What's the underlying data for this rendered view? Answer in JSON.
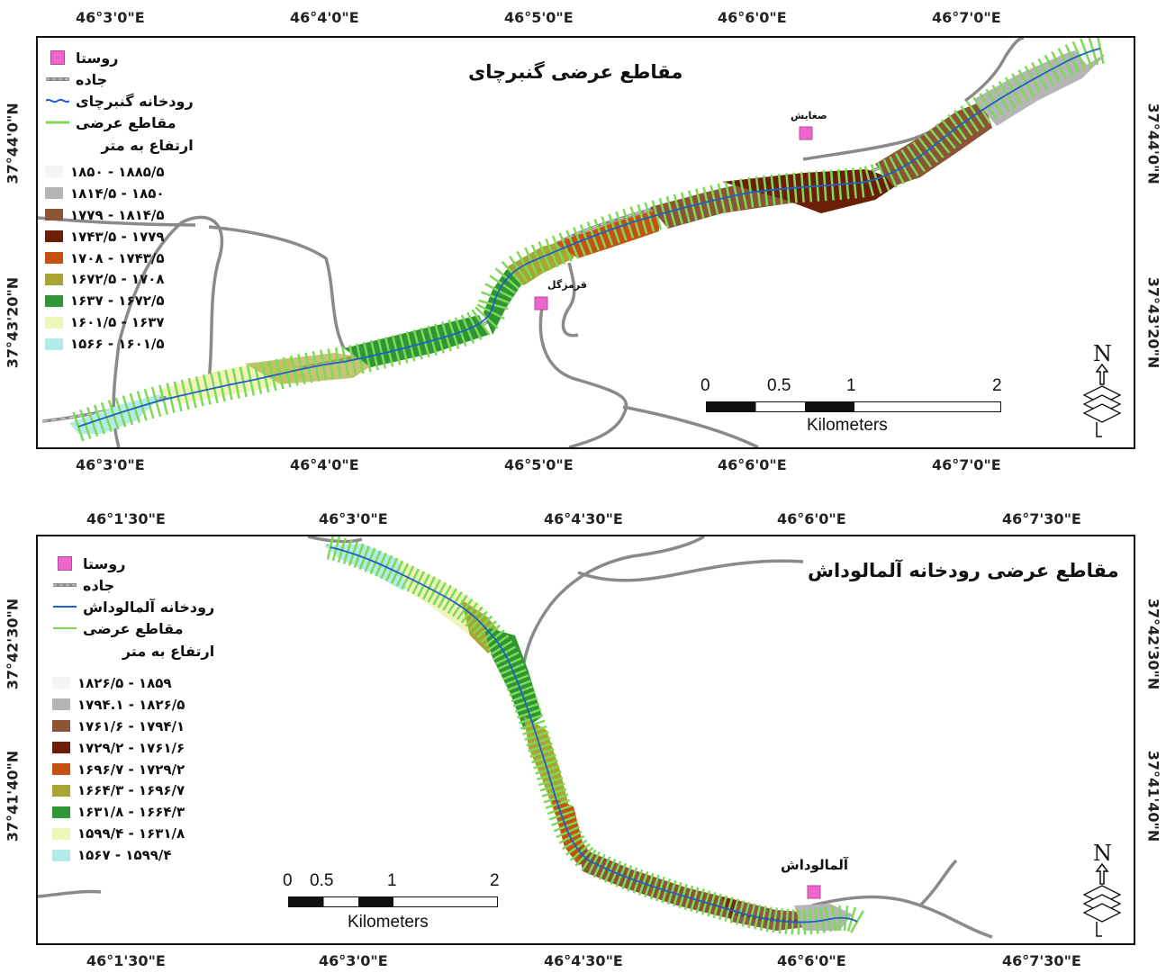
{
  "map1": {
    "title": "مقاطع عرضی گنبرچای",
    "lon_ticks": [
      "46°3'0\"E",
      "46°4'0\"E",
      "46°5'0\"E",
      "46°6'0\"E",
      "46°7'0\"E"
    ],
    "lat_ticks": [
      "37°44'0\"N",
      "37°43'20\"N"
    ],
    "legend": {
      "village": "روستا",
      "road": "جاده",
      "river": "رودخانه گنبرچای",
      "cross_sections": "مقاطع عرضی",
      "elevation_header": "ارتفاع به متر"
    },
    "classes": [
      {
        "label": "۱۸۵۰ - ۱۸۸۵/۵",
        "color": "#f5f5f5"
      },
      {
        "label": "۱۸۱۴/۵ - ۱۸۵۰",
        "color": "#b5b5b5"
      },
      {
        "label": "۱۷۷۹ - ۱۸۱۴/۵",
        "color": "#8b5535"
      },
      {
        "label": "۱۷۴۳/۵ - ۱۷۷۹",
        "color": "#6b1e08"
      },
      {
        "label": "۱۷۰۸ - ۱۷۴۳/۵",
        "color": "#c55212"
      },
      {
        "label": "۱۶۷۲/۵ - ۱۷۰۸",
        "color": "#a9a532"
      },
      {
        "label": "۱۶۳۷ - ۱۶۷۲/۵",
        "color": "#2e9632"
      },
      {
        "label": "۱۶۰۱/۵ - ۱۶۳۷",
        "color": "#eef5b8"
      },
      {
        "label": "۱۵۶۶ - ۱۶۰۱/۵",
        "color": "#b3ebe8"
      }
    ],
    "places": [
      "صغایش",
      "قرمزگل"
    ],
    "scale": {
      "ticks": [
        "0",
        "0.5",
        "1",
        "2"
      ],
      "unit": "Kilometers"
    }
  },
  "map2": {
    "title": "مقاطع عرضی رودخانه آلمالوداش",
    "lon_ticks": [
      "46°1'30\"E",
      "46°3'0\"E",
      "46°4'30\"E",
      "46°6'0\"E",
      "46°7'30\"E"
    ],
    "lat_ticks": [
      "37°42'30\"N",
      "37°41'40\"N"
    ],
    "legend": {
      "village": "روستا",
      "road": "جاده",
      "river": "رودخانه آلمالوداش",
      "cross_sections": "مقاطع عرضی",
      "elevation_header": "ارتفاع به متر"
    },
    "classes": [
      {
        "label": "۱۸۲۶/۵ - ۱۸۵۹",
        "color": "#f5f5f5"
      },
      {
        "label": "۱۷۹۴.۱ - ۱۸۲۶/۵",
        "color": "#b5b5b5"
      },
      {
        "label": "۱۷۶۱/۶ - ۱۷۹۴/۱",
        "color": "#8b5535"
      },
      {
        "label": "۱۷۲۹/۲ - ۱۷۶۱/۶",
        "color": "#6b1e08"
      },
      {
        "label": "۱۶۹۶/۷ - ۱۷۲۹/۲",
        "color": "#c55212"
      },
      {
        "label": "۱۶۶۴/۳ - ۱۶۹۶/۷",
        "color": "#a9a532"
      },
      {
        "label": "۱۶۳۱/۸ - ۱۶۶۴/۳",
        "color": "#2e9632"
      },
      {
        "label": "۱۵۹۹/۴ - ۱۶۳۱/۸",
        "color": "#eef5b8"
      },
      {
        "label": "۱۵۶۷ - ۱۵۹۹/۴",
        "color": "#b3ebe8"
      }
    ],
    "places": [
      "آلمالوداش"
    ],
    "scale": {
      "ticks": [
        "0",
        "0.5",
        "1",
        "2"
      ],
      "unit": "Kilometers"
    }
  },
  "north_letter": "N",
  "colors": {
    "village": "#ee66cc",
    "road": "#8a8a8a",
    "river": "#1f5fc8",
    "cross_section": "#7ed957"
  }
}
